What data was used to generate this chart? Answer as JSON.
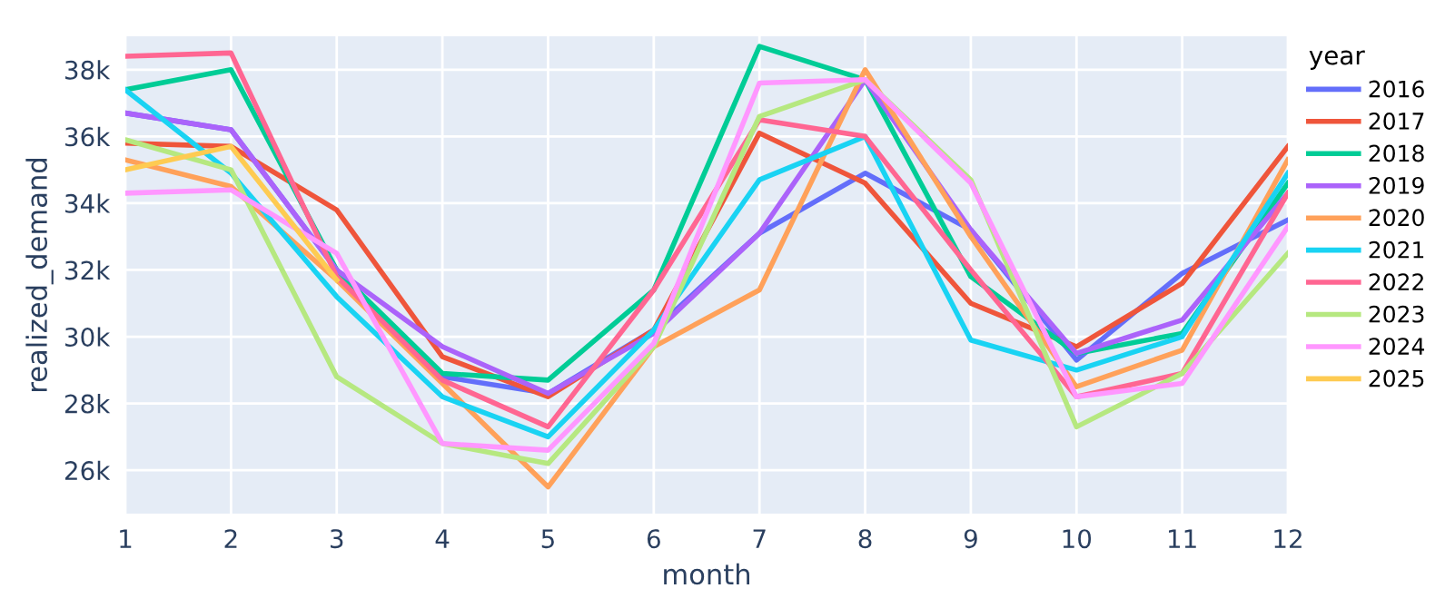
{
  "chart_data": {
    "type": "line",
    "xlabel": "month",
    "ylabel": "realized_demand",
    "legend_title": "year",
    "legend": "right",
    "grid": true,
    "x": [
      1,
      2,
      3,
      4,
      5,
      6,
      7,
      8,
      9,
      10,
      11,
      12
    ],
    "xlim": [
      1,
      12
    ],
    "xticks": [
      1,
      2,
      3,
      4,
      5,
      6,
      7,
      8,
      9,
      10,
      11,
      12
    ],
    "ylim": [
      24700,
      39000
    ],
    "yticks": [
      {
        "value": 26000,
        "label": "26k"
      },
      {
        "value": 28000,
        "label": "28k"
      },
      {
        "value": 30000,
        "label": "30k"
      },
      {
        "value": 32000,
        "label": "32k"
      },
      {
        "value": 34000,
        "label": "34k"
      },
      {
        "value": 36000,
        "label": "36k"
      },
      {
        "value": 38000,
        "label": "38k"
      }
    ],
    "series": [
      {
        "name": "2016",
        "color": "#636efa",
        "values": [
          36700,
          36200,
          32000,
          28800,
          28300,
          30200,
          33100,
          34900,
          33200,
          29300,
          31900,
          33500
        ]
      },
      {
        "name": "2017",
        "color": "#ef553b",
        "values": [
          35800,
          35700,
          33800,
          29400,
          28200,
          30200,
          36100,
          34600,
          31000,
          29700,
          31600,
          35700
        ]
      },
      {
        "name": "2018",
        "color": "#00cc96",
        "values": [
          37400,
          38000,
          32000,
          28900,
          28700,
          31400,
          38700,
          37700,
          31800,
          29500,
          30100,
          34600
        ]
      },
      {
        "name": "2019",
        "color": "#ab63fa",
        "values": [
          36700,
          36200,
          32000,
          29700,
          28300,
          30100,
          33100,
          37700,
          33200,
          29500,
          30500,
          34300
        ]
      },
      {
        "name": "2020",
        "color": "#ffa15a",
        "values": [
          35300,
          34500,
          31700,
          28600,
          25500,
          29700,
          31400,
          38000,
          33000,
          28500,
          29600,
          35300
        ]
      },
      {
        "name": "2021",
        "color": "#19d3f3",
        "values": [
          37400,
          34900,
          31200,
          28200,
          27000,
          30200,
          34700,
          36000,
          29900,
          29000,
          30000,
          34900
        ]
      },
      {
        "name": "2022",
        "color": "#ff6692",
        "values": [
          38400,
          38500,
          31800,
          28700,
          27300,
          31400,
          36500,
          36000,
          32000,
          28200,
          28900,
          34300
        ]
      },
      {
        "name": "2023",
        "color": "#b6e880",
        "values": [
          35900,
          35000,
          28800,
          26800,
          26200,
          29700,
          36600,
          37700,
          34700,
          27300,
          28900,
          32500
        ]
      },
      {
        "name": "2024",
        "color": "#ff97ff",
        "values": [
          34300,
          34400,
          32500,
          26800,
          26600,
          29800,
          37600,
          37700,
          34600,
          28200,
          28600,
          33300
        ]
      },
      {
        "name": "2025",
        "color": "#fecb52",
        "values": [
          35000,
          35700,
          31700,
          null,
          null,
          null,
          null,
          null,
          null,
          null,
          null,
          null
        ]
      }
    ]
  }
}
